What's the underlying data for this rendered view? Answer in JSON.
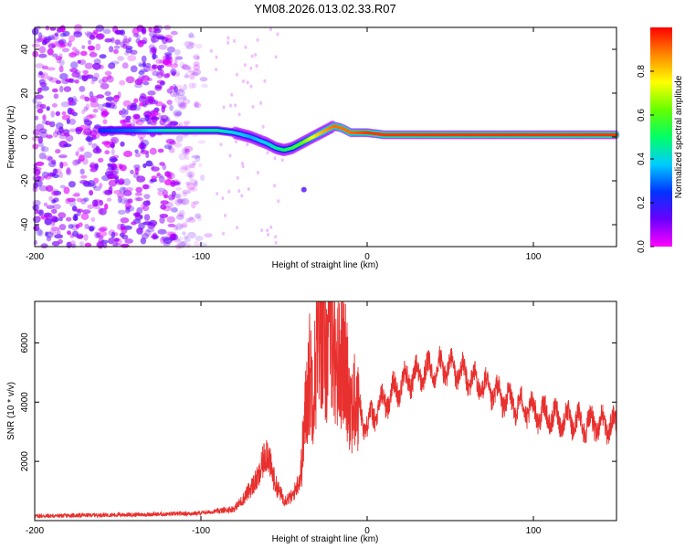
{
  "figure": {
    "title": "YM08.2026.013.02.33.R07"
  },
  "colors": {
    "snr_line": "#e8302e",
    "background": "#ffffff",
    "axis": "#000000"
  },
  "chart_data": [
    {
      "type": "heatmap",
      "xlabel": "Height of straight line (km)",
      "ylabel": "Frequency (Hz)",
      "xlim": [
        -200,
        150
      ],
      "ylim": [
        -50,
        50
      ],
      "xticks": [
        -200,
        -100,
        0,
        100
      ],
      "yticks": [
        -40,
        -20,
        0,
        20,
        40
      ],
      "colorbar": {
        "label": "Normalized spectral amplitude",
        "range": [
          0,
          1
        ],
        "ticks": [
          0.0,
          0.2,
          0.4,
          0.6,
          0.8
        ],
        "colormap": [
          "#ff00ff",
          "#6a00ff",
          "#0033ff",
          "#00ccff",
          "#00ff66",
          "#66ff00",
          "#ffff00",
          "#ff8800",
          "#ff0000"
        ]
      },
      "ridge": {
        "description_free": true,
        "x": [
          -160,
          -140,
          -120,
          -100,
          -90,
          -80,
          -70,
          -60,
          -55,
          -50,
          -45,
          -40,
          -35,
          -30,
          -25,
          -20,
          -15,
          -10,
          0,
          10,
          30,
          50,
          70,
          90,
          110,
          130,
          150
        ],
        "y": [
          3,
          3,
          3,
          3,
          3,
          2,
          0,
          -3,
          -5,
          -6,
          -5,
          -3,
          -1,
          1,
          3,
          5,
          4,
          2,
          2,
          1,
          1,
          1,
          1,
          1,
          1,
          1,
          1
        ],
        "amplitude": [
          0.25,
          0.3,
          0.45,
          0.45,
          0.45,
          0.4,
          0.35,
          0.4,
          0.45,
          0.5,
          0.55,
          0.6,
          0.7,
          0.8,
          0.85,
          0.9,
          0.9,
          0.9,
          0.95,
          0.95,
          0.95,
          0.95,
          0.95,
          0.95,
          0.95,
          0.95,
          0.95
        ]
      },
      "noise_region_x": [
        -200,
        -95
      ]
    },
    {
      "type": "line",
      "xlabel": "Height of straight line (km)",
      "ylabel": "SNR (10 * v/v)",
      "xlim": [
        -200,
        150
      ],
      "ylim": [
        0,
        7400
      ],
      "xticks": [
        -200,
        -100,
        0,
        100
      ],
      "yticks": [
        2000,
        4000,
        6000
      ],
      "series": [
        {
          "x": [
            -200,
            -180,
            -160,
            -140,
            -120,
            -100,
            -90,
            -80,
            -75,
            -70,
            -65,
            -62,
            -60,
            -58,
            -55,
            -50,
            -45,
            -40,
            -38,
            -35,
            -32,
            -30,
            -28,
            -25,
            -22,
            -20,
            -18,
            -15,
            -12,
            -10,
            -5,
            0,
            5,
            10,
            15,
            20,
            25,
            30,
            35,
            40,
            45,
            50,
            55,
            60,
            65,
            70,
            80,
            90,
            100,
            110,
            120,
            130,
            140,
            150
          ],
          "y": [
            150,
            170,
            190,
            200,
            220,
            250,
            320,
            400,
            700,
            1100,
            1500,
            2100,
            2400,
            1800,
            1200,
            700,
            800,
            1500,
            3000,
            5000,
            4500,
            6000,
            6800,
            5500,
            7100,
            6000,
            5200,
            5600,
            4800,
            4000,
            3800,
            3200,
            3700,
            4000,
            4300,
            4600,
            4800,
            4900,
            5000,
            5100,
            5200,
            5150,
            5050,
            4850,
            4700,
            4500,
            4200,
            3900,
            3700,
            3500,
            3400,
            3300,
            3250,
            3200
          ]
        }
      ]
    }
  ]
}
